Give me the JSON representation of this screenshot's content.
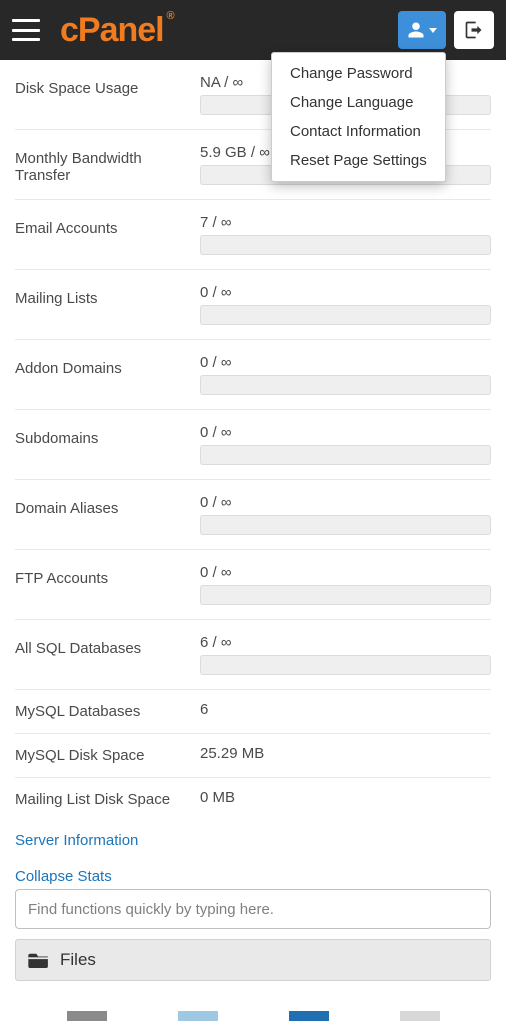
{
  "logo_text": "cPanel",
  "dropdown": {
    "items": [
      "Change Password",
      "Change Language",
      "Contact Information",
      "Reset Page Settings"
    ]
  },
  "stats_with_bar": [
    {
      "label": "Disk Space Usage",
      "value": "NA / ∞"
    },
    {
      "label": "Monthly Bandwidth Transfer",
      "value": "5.9 GB / ∞"
    },
    {
      "label": "Email Accounts",
      "value": "7 / ∞"
    },
    {
      "label": "Mailing Lists",
      "value": "0 / ∞"
    },
    {
      "label": "Addon Domains",
      "value": "0 / ∞"
    },
    {
      "label": "Subdomains",
      "value": "0 / ∞"
    },
    {
      "label": "Domain Aliases",
      "value": "0 / ∞"
    },
    {
      "label": "FTP Accounts",
      "value": "0 / ∞"
    },
    {
      "label": "All SQL Databases",
      "value": "6 / ∞"
    }
  ],
  "stats_plain": [
    {
      "label": "MySQL Databases",
      "value": "6"
    },
    {
      "label": "MySQL Disk Space",
      "value": "25.29 MB"
    },
    {
      "label": "Mailing List Disk Space",
      "value": "0 MB"
    }
  ],
  "links": {
    "server_info": "Server Information",
    "collapse": "Collapse Stats"
  },
  "search_placeholder": "Find functions quickly by typing here.",
  "panel_files": "Files",
  "colors": {
    "header_bg": "#282828",
    "logo": "#ef7c21",
    "user_btn": "#3d8fd9",
    "link": "#1b75bb",
    "bar_bg": "#efefef",
    "panel_bg": "#e9e9e9"
  }
}
